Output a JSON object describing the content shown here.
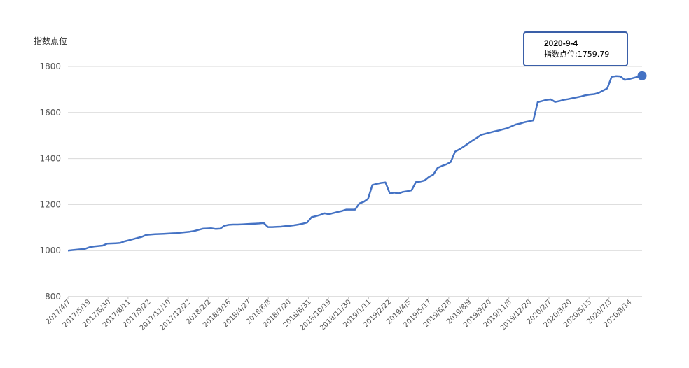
{
  "chart_data": {
    "type": "area",
    "ylabel": "指数点位",
    "ylim": [
      800,
      1800
    ],
    "yticks": [
      800,
      1000,
      1200,
      1400,
      1600,
      1800
    ],
    "grid": true,
    "line_color": "#4472c4",
    "x_start": "2017/4/7",
    "x_end": "2020/9/4",
    "x_tick_labels": [
      "2017/4/7",
      "2017/5/19",
      "2017/6/30",
      "2017/8/11",
      "2017/9/22",
      "2017/11/10",
      "2017/12/22",
      "2018/2/2",
      "2018/3/16",
      "2018/4/27",
      "2018/6/8",
      "2018/7/20",
      "2018/8/31",
      "2018/10/19",
      "2018/11/30",
      "2019/1/11",
      "2019/2/22",
      "2019/4/5",
      "2019/5/17",
      "2019/6/28",
      "2019/8/9",
      "2019/9/20",
      "2019/11/8",
      "2019/12/20",
      "2020/2/7",
      "2020/3/20",
      "2020/5/15",
      "2020/7/3",
      "2020/8/14"
    ],
    "series": [
      {
        "values": [
          1000,
          1002,
          1004,
          1006,
          1008,
          1015,
          1018,
          1020,
          1022,
          1030,
          1031,
          1032,
          1033,
          1040,
          1045,
          1050,
          1055,
          1060,
          1068,
          1070,
          1071,
          1072,
          1073,
          1074,
          1075,
          1076,
          1078,
          1080,
          1082,
          1085,
          1090,
          1095,
          1096,
          1097,
          1094,
          1095,
          1108,
          1112,
          1113,
          1113,
          1114,
          1115,
          1116,
          1117,
          1118,
          1120,
          1102,
          1102,
          1103,
          1104,
          1106,
          1108,
          1110,
          1113,
          1117,
          1122,
          1145,
          1150,
          1155,
          1162,
          1158,
          1163,
          1168,
          1172,
          1178,
          1178,
          1178,
          1205,
          1212,
          1225,
          1285,
          1290,
          1294,
          1296,
          1248,
          1252,
          1248,
          1255,
          1258,
          1262,
          1298,
          1300,
          1305,
          1320,
          1330,
          1360,
          1368,
          1375,
          1385,
          1430,
          1440,
          1452,
          1465,
          1478,
          1490,
          1503,
          1508,
          1513,
          1518,
          1522,
          1527,
          1532,
          1540,
          1548,
          1552,
          1558,
          1562,
          1566,
          1645,
          1650,
          1655,
          1657,
          1646,
          1650,
          1655,
          1658,
          1662,
          1666,
          1670,
          1675,
          1678,
          1680,
          1685,
          1695,
          1705,
          1755,
          1758,
          1757,
          1742,
          1745,
          1750,
          1755,
          1759.79
        ]
      }
    ],
    "tooltip": {
      "date": "2020-9-4",
      "label": "指数点位:1759.79"
    }
  }
}
